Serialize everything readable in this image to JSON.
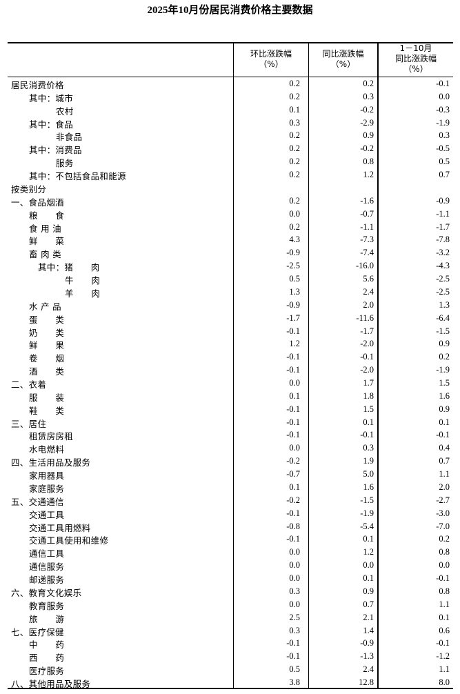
{
  "title": "2025年10月份居民消费价格主要数据",
  "headers": {
    "mom": [
      "环比涨跌幅",
      "（%）"
    ],
    "yoy": [
      "同比涨跌幅",
      "（%）"
    ],
    "ytd": [
      "1－10月",
      "同比涨跌幅",
      "（%）"
    ]
  },
  "rows": [
    {
      "label": "居民消费价格",
      "level": 0,
      "mom": "0.2",
      "yoy": "0.2",
      "ytd": "-0.1"
    },
    {
      "label": "其中：城市",
      "level": 1,
      "mom": "0.2",
      "yoy": "0.3",
      "ytd": "0.0"
    },
    {
      "label": "农村",
      "level": 2,
      "mom": "0.1",
      "yoy": "-0.2",
      "ytd": "-0.3"
    },
    {
      "label": "其中：食品",
      "level": 1,
      "mom": "0.3",
      "yoy": "-2.9",
      "ytd": "-1.9"
    },
    {
      "label": "非食品",
      "level": 2,
      "mom": "0.2",
      "yoy": "0.9",
      "ytd": "0.3"
    },
    {
      "label": "其中：消费品",
      "level": 1,
      "mom": "0.2",
      "yoy": "-0.2",
      "ytd": "-0.5"
    },
    {
      "label": "服务",
      "level": 2,
      "mom": "0.2",
      "yoy": "0.8",
      "ytd": "0.5"
    },
    {
      "label": "其中：不包括食品和能源",
      "level": 1,
      "mom": "0.2",
      "yoy": "1.2",
      "ytd": "0.7"
    },
    {
      "label": "按类别分",
      "level": 0,
      "mom": "",
      "yoy": "",
      "ytd": ""
    },
    {
      "label": "一、食品烟酒",
      "level": 0,
      "mom": "0.2",
      "yoy": "-1.6",
      "ytd": "-0.9"
    },
    {
      "label": "粮　　食",
      "level": 1,
      "mom": "0.0",
      "yoy": "-0.7",
      "ytd": "-1.1"
    },
    {
      "label": "食 用 油",
      "level": 1,
      "mom": "0.2",
      "yoy": "-1.1",
      "ytd": "-1.7"
    },
    {
      "label": "鲜　　菜",
      "level": 1,
      "mom": "4.3",
      "yoy": "-7.3",
      "ytd": "-7.8"
    },
    {
      "label": "畜 肉 类",
      "level": 1,
      "mom": "-0.9",
      "yoy": "-7.4",
      "ytd": "-3.2"
    },
    {
      "label": "其中：猪　　肉",
      "level": 3,
      "mom": "-2.5",
      "yoy": "-16.0",
      "ytd": "-4.3"
    },
    {
      "label": "牛　　肉",
      "level": 4,
      "mom": "0.5",
      "yoy": "5.6",
      "ytd": "-2.5"
    },
    {
      "label": "羊　　肉",
      "level": 4,
      "mom": "1.3",
      "yoy": "2.4",
      "ytd": "-2.5"
    },
    {
      "label": "水 产 品",
      "level": 1,
      "mom": "-0.9",
      "yoy": "2.0",
      "ytd": "1.3"
    },
    {
      "label": "蛋　　类",
      "level": 1,
      "mom": "-1.7",
      "yoy": "-11.6",
      "ytd": "-6.4"
    },
    {
      "label": "奶　　类",
      "level": 1,
      "mom": "-0.1",
      "yoy": "-1.7",
      "ytd": "-1.5"
    },
    {
      "label": "鲜　　果",
      "level": 1,
      "mom": "1.2",
      "yoy": "-2.0",
      "ytd": "0.9"
    },
    {
      "label": "卷　　烟",
      "level": 1,
      "mom": "-0.1",
      "yoy": "-0.1",
      "ytd": "0.2"
    },
    {
      "label": "酒　　类",
      "level": 1,
      "mom": "-0.1",
      "yoy": "-2.0",
      "ytd": "-1.9"
    },
    {
      "label": "二、衣着",
      "level": 0,
      "mom": "0.0",
      "yoy": "1.7",
      "ytd": "1.5"
    },
    {
      "label": "服　　装",
      "level": 1,
      "mom": "0.1",
      "yoy": "1.8",
      "ytd": "1.6"
    },
    {
      "label": "鞋　　类",
      "level": 1,
      "mom": "-0.1",
      "yoy": "1.5",
      "ytd": "0.9"
    },
    {
      "label": "三、居住",
      "level": 0,
      "mom": "-0.1",
      "yoy": "0.1",
      "ytd": "0.1"
    },
    {
      "label": "租赁房房租",
      "level": 1,
      "mom": "-0.1",
      "yoy": "-0.1",
      "ytd": "-0.1"
    },
    {
      "label": "水电燃料",
      "level": 1,
      "mom": "0.0",
      "yoy": "0.3",
      "ytd": "0.4"
    },
    {
      "label": "四、生活用品及服务",
      "level": 0,
      "mom": "-0.2",
      "yoy": "1.9",
      "ytd": "0.7"
    },
    {
      "label": "家用器具",
      "level": 1,
      "mom": "-0.7",
      "yoy": "5.0",
      "ytd": "1.1"
    },
    {
      "label": "家庭服务",
      "level": 1,
      "mom": "0.1",
      "yoy": "1.6",
      "ytd": "2.0"
    },
    {
      "label": "五、交通通信",
      "level": 0,
      "mom": "-0.2",
      "yoy": "-1.5",
      "ytd": "-2.7"
    },
    {
      "label": "交通工具",
      "level": 1,
      "mom": "-0.1",
      "yoy": "-1.9",
      "ytd": "-3.0"
    },
    {
      "label": "交通工具用燃料",
      "level": 1,
      "mom": "-0.8",
      "yoy": "-5.4",
      "ytd": "-7.0"
    },
    {
      "label": "交通工具使用和维修",
      "level": 1,
      "mom": "-0.1",
      "yoy": "0.1",
      "ytd": "0.2"
    },
    {
      "label": "通信工具",
      "level": 1,
      "mom": "0.0",
      "yoy": "1.2",
      "ytd": "0.8"
    },
    {
      "label": "通信服务",
      "level": 1,
      "mom": "0.0",
      "yoy": "0.0",
      "ytd": "0.0"
    },
    {
      "label": "邮递服务",
      "level": 1,
      "mom": "0.0",
      "yoy": "0.1",
      "ytd": "-0.1"
    },
    {
      "label": "六、教育文化娱乐",
      "level": 0,
      "mom": "0.3",
      "yoy": "0.9",
      "ytd": "0.8"
    },
    {
      "label": "教育服务",
      "level": 1,
      "mom": "0.0",
      "yoy": "0.7",
      "ytd": "1.1"
    },
    {
      "label": "旅　　游",
      "level": 1,
      "mom": "2.5",
      "yoy": "2.1",
      "ytd": "0.1"
    },
    {
      "label": "七、医疗保健",
      "level": 0,
      "mom": "0.3",
      "yoy": "1.4",
      "ytd": "0.6"
    },
    {
      "label": "中　　药",
      "level": 1,
      "mom": "-0.1",
      "yoy": "-0.9",
      "ytd": "-0.1"
    },
    {
      "label": "西　　药",
      "level": 1,
      "mom": "-0.1",
      "yoy": "-1.3",
      "ytd": "-1.2"
    },
    {
      "label": "医疗服务",
      "level": 1,
      "mom": "0.5",
      "yoy": "2.4",
      "ytd": "1.1"
    },
    {
      "label": "八、其他用品及服务",
      "level": 0,
      "mom": "3.8",
      "yoy": "12.8",
      "ytd": "8.0"
    }
  ]
}
